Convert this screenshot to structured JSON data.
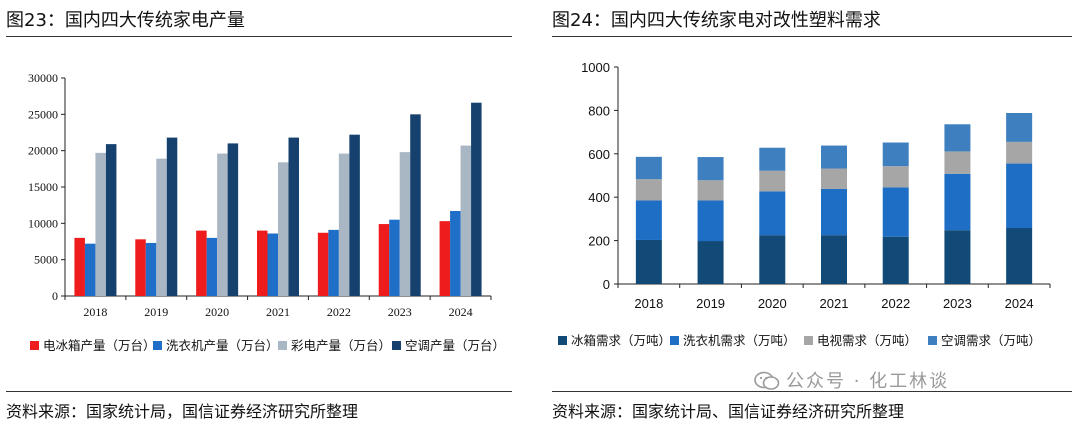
{
  "left": {
    "title": "图23：国内四大传统家电产量",
    "source": "资料来源：国家统计局，国信证券经济研究所整理"
  },
  "right": {
    "title": "图24：国内四大传统家电对改性塑料需求",
    "source": "资料来源：国家统计局、国信证券经济研究所整理"
  },
  "watermark": {
    "text": "公众号 · 化工林谈",
    "icon": "wechat-icon"
  },
  "colors": {
    "red": "#ee1c1c",
    "blue": "#1f6fc9",
    "gray": "#a9b6c3",
    "navy": "#16416e",
    "stack_dark": "#124a77",
    "stack_mid": "#1d6ec4",
    "stack_gray": "#a6a6a6",
    "stack_light": "#3d7fbf"
  },
  "chart_data": [
    {
      "type": "bar",
      "title": "",
      "categories": [
        "2018",
        "2019",
        "2020",
        "2021",
        "2022",
        "2023",
        "2024"
      ],
      "ylim": [
        0,
        30000
      ],
      "yticks": [
        "0",
        "5000",
        "10000",
        "15000",
        "20000",
        "25000",
        "30000"
      ],
      "legend_position": "bottom",
      "grid": false,
      "series": [
        {
          "name": "电冰箱产量（万台）",
          "color": "#ee1c1c",
          "values": [
            8000,
            7800,
            9000,
            9000,
            8700,
            9900,
            10300
          ]
        },
        {
          "name": "洗衣机产量（万台）",
          "color": "#1f6fc9",
          "values": [
            7200,
            7300,
            8000,
            8600,
            9100,
            10500,
            11700
          ]
        },
        {
          "name": "彩电产量（万台）",
          "color": "#a9b6c3",
          "values": [
            19700,
            18900,
            19600,
            18400,
            19600,
            19800,
            20700
          ]
        },
        {
          "name": "空调产量（万台）",
          "color": "#16416e",
          "values": [
            20900,
            21800,
            21000,
            21800,
            22200,
            25000,
            26600
          ]
        }
      ]
    },
    {
      "type": "bar",
      "stacked": true,
      "title": "",
      "categories": [
        "2018",
        "2019",
        "2020",
        "2021",
        "2022",
        "2023",
        "2024"
      ],
      "ylim": [
        0,
        1000
      ],
      "yticks": [
        "0",
        "200",
        "400",
        "600",
        "800",
        "1000"
      ],
      "legend_position": "bottom",
      "grid": false,
      "series": [
        {
          "name": "冰箱需求（万吨）",
          "color": "#124a77",
          "values": [
            203,
            198,
            225,
            225,
            218,
            248,
            258
          ]
        },
        {
          "name": "洗衣机需求（万吨）",
          "color": "#1d6ec4",
          "values": [
            182,
            187,
            202,
            213,
            227,
            260,
            297
          ]
        },
        {
          "name": "电视需求（万吨）",
          "color": "#a6a6a6",
          "values": [
            98,
            93,
            95,
            94,
            98,
            103,
            100
          ]
        },
        {
          "name": "空调需求（万吨）",
          "color": "#3d7fbf",
          "values": [
            103,
            107,
            106,
            106,
            109,
            125,
            133
          ]
        }
      ]
    }
  ]
}
